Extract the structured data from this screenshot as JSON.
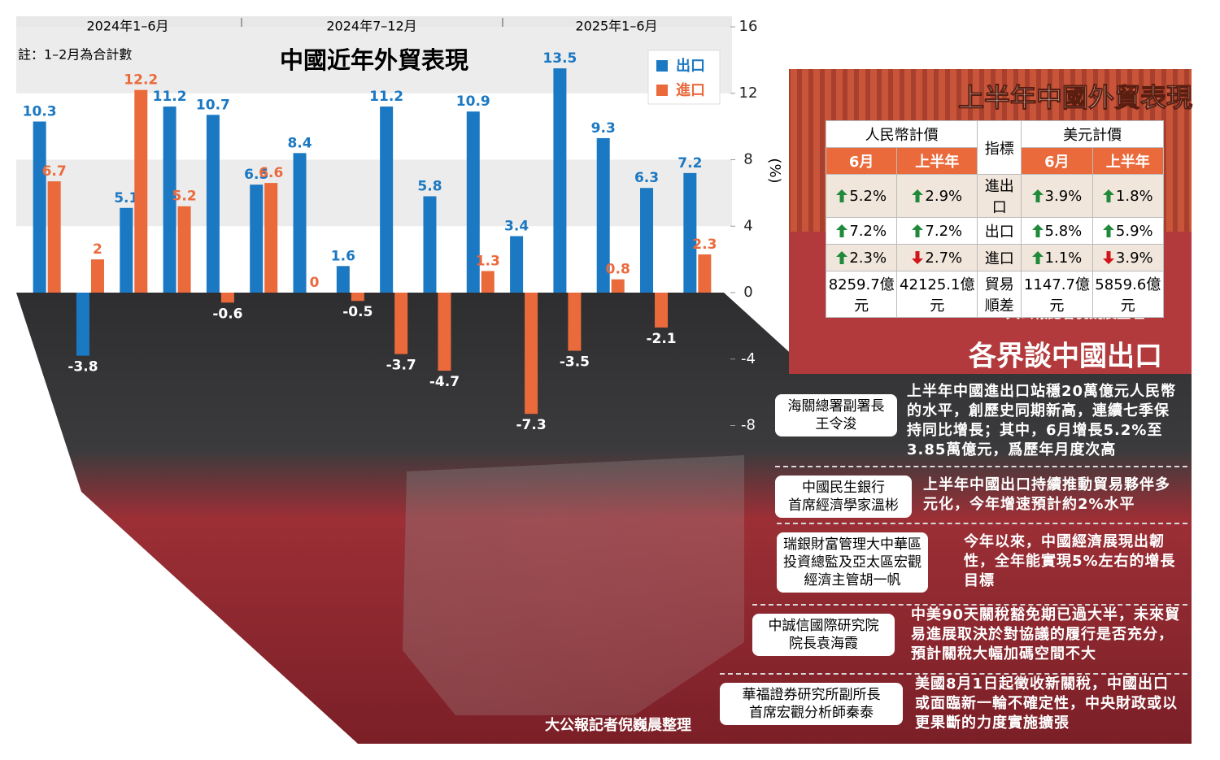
{
  "chart_data": {
    "type": "bar",
    "title": "中國近年外貿表現",
    "note": "註：1–2月為合計數",
    "periods": [
      "2024年1–6月",
      "2024年7–12月",
      "2025年1–6月"
    ],
    "y_label": "(%)",
    "categories": [
      null,
      null,
      null,
      null,
      null,
      null,
      null,
      null,
      null,
      null,
      null,
      null,
      null,
      null,
      null,
      null
    ],
    "series": [
      {
        "name": "出口",
        "color": "#1b78c2",
        "values": [
          10.3,
          -3.8,
          5.1,
          11.2,
          10.7,
          6.5,
          8.4,
          1.6,
          11.2,
          5.8,
          10.9,
          3.4,
          13.5,
          9.3,
          6.3,
          7.2
        ]
      },
      {
        "name": "進口",
        "color": "#ea6a3c",
        "values": [
          6.7,
          2,
          12.2,
          5.2,
          -0.6,
          6.6,
          0,
          -0.5,
          -3.7,
          -4.7,
          1.3,
          -7.3,
          -3.5,
          0.8,
          -2.1,
          2.3
        ]
      }
    ],
    "ylim": [
      -8,
      16
    ],
    "yticks": [
      16,
      12,
      8,
      4,
      0,
      -4,
      -8
    ],
    "grid": true,
    "legend_position": "top-right",
    "credit": "大公報記者倪巍晨整理"
  },
  "table": {
    "title": "上半年中國外貿表現",
    "header": [
      "人民幣計價",
      "指標",
      "美元計價"
    ],
    "subheader": [
      "6月",
      "上半年",
      "6月",
      "上半年"
    ],
    "rows": [
      [
        {
          "text": "5.2%",
          "trend": "up"
        },
        {
          "text": "2.9%",
          "trend": "up"
        },
        "進出口",
        {
          "text": "3.9%",
          "trend": "up"
        },
        {
          "text": "1.8%",
          "trend": "up"
        }
      ],
      [
        {
          "text": "7.2%",
          "trend": "up"
        },
        {
          "text": "7.2%",
          "trend": "up"
        },
        "出口",
        {
          "text": "5.8%",
          "trend": "up"
        },
        {
          "text": "5.9%",
          "trend": "up"
        }
      ],
      [
        {
          "text": "2.3%",
          "trend": "up"
        },
        {
          "text": "2.7%",
          "trend": "down"
        },
        "進口",
        {
          "text": "1.1%",
          "trend": "up"
        },
        {
          "text": "3.9%",
          "trend": "down"
        }
      ],
      [
        "8259.7億元",
        "42125.1億元",
        "貿易順差",
        "1147.7億元",
        "5859.6億元"
      ]
    ],
    "credit": "大公報記者倪巍晨整理"
  },
  "comments": {
    "title": "各界談中國出口",
    "items": [
      {
        "speaker": [
          "海關總署副署長",
          "王令浚"
        ],
        "quote": "上半年中國進出口站穩20萬億元人民幣的水平，創歷史同期新高，連續七季保持同比增長；其中，6月增長5.2%至3.85萬億元，爲歷年月度次高"
      },
      {
        "speaker": [
          "中國民生銀行",
          "首席經濟學家溫彬"
        ],
        "quote": "上半年中國出口持續推動貿易夥伴多元化，今年增速預計約2%水平"
      },
      {
        "speaker": [
          "瑞銀財富管理大中華區",
          "投資總監及亞太區宏觀",
          "經濟主管胡一帆"
        ],
        "quote": "今年以來，中國經濟展現出韌性，全年能實現5%左右的增長目標"
      },
      {
        "speaker": [
          "中誠信國際研究院",
          "院長袁海霞"
        ],
        "quote": "中美90天關稅豁免期已過大半，未來貿易進展取決於對協議的履行是否充分，預計關稅大幅加碼空間不大"
      },
      {
        "speaker": [
          "華福證券研究所副所長",
          "首席宏觀分析師秦泰"
        ],
        "quote": "美國8月1日起徵收新關稅，中國出口或面臨新一輪不確定性，中央財政或以更果斷的力度實施擴張"
      }
    ]
  }
}
